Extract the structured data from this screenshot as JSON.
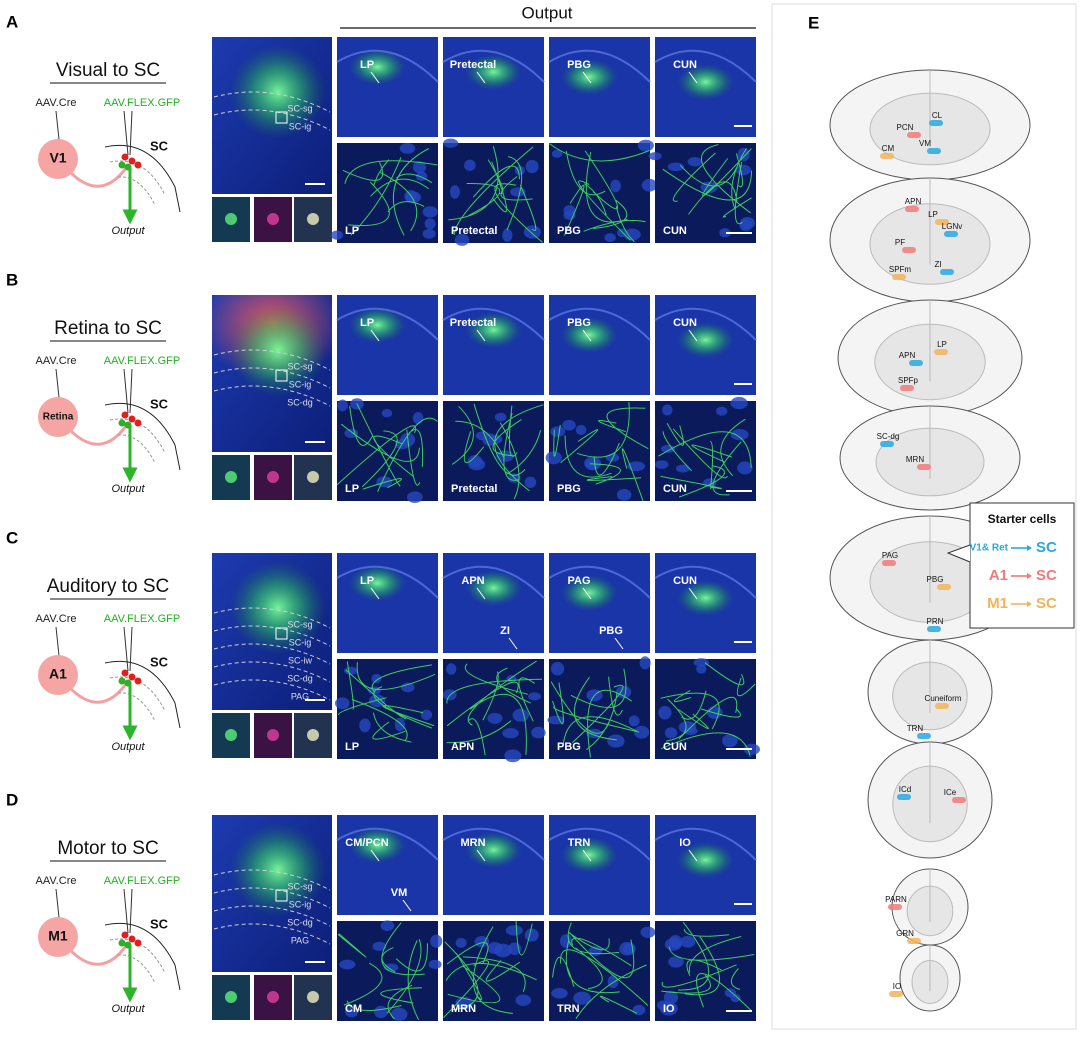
{
  "output_header": "Output",
  "rows": [
    {
      "letter": "A",
      "title": "Visual to SC",
      "cre": "AAV.Cre",
      "flex": "AAV.FLEX.GFP",
      "source": "V1",
      "target": "SC",
      "output": "Output",
      "layers": [
        "SC-sg",
        "SC-ig"
      ],
      "top_labels": [
        [
          "LP"
        ],
        [
          "Pretectal"
        ],
        [
          "PBG"
        ],
        [
          "CUN"
        ]
      ],
      "bottom_labels": [
        "LP",
        "Pretectal",
        "PBG",
        "CUN"
      ]
    },
    {
      "letter": "B",
      "title": "Retina to SC",
      "cre": "AAV.Cre",
      "flex": "AAV.FLEX.GFP",
      "source": "Retina",
      "target": "SC",
      "output": "Output",
      "layers": [
        "SC-sg",
        "SC-ig",
        "SC-dg"
      ],
      "top_labels": [
        [
          "LP"
        ],
        [
          "Pretectal"
        ],
        [
          "PBG"
        ],
        [
          "CUN"
        ]
      ],
      "bottom_labels": [
        "LP",
        "Pretectal",
        "PBG",
        "CUN"
      ]
    },
    {
      "letter": "C",
      "title": "Auditory to SC",
      "cre": "AAV.Cre",
      "flex": "AAV.FLEX.GFP",
      "source": "A1",
      "target": "SC",
      "output": "Output",
      "layers": [
        "SC-sg",
        "SC-ig",
        "SC-iw",
        "SC-dg",
        "PAG"
      ],
      "top_labels": [
        [
          "LP"
        ],
        [
          "APN",
          "ZI"
        ],
        [
          "PAG",
          "PBG"
        ],
        [
          "CUN"
        ]
      ],
      "bottom_labels": [
        "LP",
        "APN",
        "PBG",
        "CUN"
      ]
    },
    {
      "letter": "D",
      "title": "Motor to SC",
      "cre": "AAV.Cre",
      "flex": "AAV.FLEX.GFP",
      "source": "M1",
      "target": "SC",
      "output": "Output",
      "layers": [
        "SC-sg",
        "SC-ig",
        "SC-dg",
        "PAG"
      ],
      "top_labels": [
        [
          "CM/PCN",
          "VM"
        ],
        [
          "MRN"
        ],
        [
          "TRN"
        ],
        [
          "IO"
        ]
      ],
      "bottom_labels": [
        "CM",
        "MRN",
        "TRN",
        "IO"
      ]
    }
  ],
  "panel_e": {
    "letter": "E",
    "sections": [
      [
        "CL",
        "PCN",
        "CM",
        "VM"
      ],
      [
        "APN",
        "LP",
        "LGNv",
        "PF",
        "SPFm",
        "ZI"
      ],
      [
        "LP",
        "APN",
        "SPFp"
      ],
      [
        "SC-dg",
        "MRN"
      ],
      [
        "PAG",
        "PBG",
        "PRN"
      ],
      [
        "Cuneiform",
        "TRN"
      ],
      [
        "ICd",
        "ICe"
      ],
      [
        "PARN",
        "GRN"
      ],
      [
        "IO"
      ]
    ],
    "legend": {
      "title": "Starter cells",
      "items": [
        {
          "source": "V1& Ret",
          "target": "SC",
          "color": "#29a8e0"
        },
        {
          "source": "A1",
          "target": "SC",
          "color": "#f07a7a"
        },
        {
          "source": "M1",
          "target": "SC",
          "color": "#f2b35a"
        }
      ]
    }
  }
}
